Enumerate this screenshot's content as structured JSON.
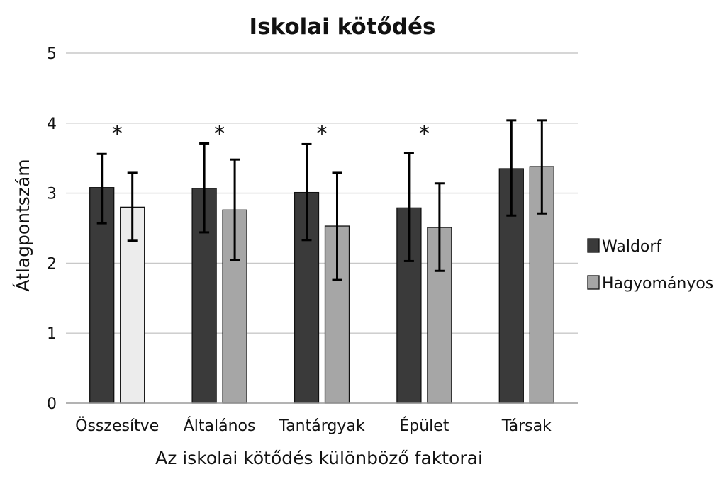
{
  "chart_data": {
    "type": "bar",
    "title": "Iskolai kötődés",
    "xlabel": "Az iskolai kötődés különböző faktorai",
    "ylabel": "Átlagpontszám",
    "ylim": [
      0,
      5
    ],
    "yticks": [
      "0",
      "1",
      "2",
      "3",
      "4",
      "5"
    ],
    "grid": true,
    "legend_position": "right",
    "categories": [
      "Összesítve",
      "Általános",
      "Tantárgyak",
      "Épület",
      "Társak"
    ],
    "series": [
      {
        "name": "Waldorf",
        "color": "#3a3a3a",
        "values": [
          3.08,
          3.07,
          3.01,
          2.79,
          3.35
        ],
        "error_low": [
          2.57,
          2.44,
          2.33,
          2.03,
          2.68
        ],
        "error_high": [
          3.56,
          3.71,
          3.7,
          3.57,
          4.04
        ]
      },
      {
        "name": "Hagyományos",
        "color": "#a6a6a6",
        "values": [
          2.8,
          2.76,
          2.53,
          2.51,
          3.38
        ],
        "error_low": [
          2.32,
          2.04,
          1.76,
          1.89,
          2.71
        ],
        "error_high": [
          3.29,
          3.48,
          3.29,
          3.14,
          4.04
        ]
      }
    ],
    "highlight": {
      "series": 1,
      "category": 0,
      "color": "#ececec"
    },
    "annotations": [
      {
        "text": "*",
        "category": 0,
        "y": 3.95
      },
      {
        "text": "*",
        "category": 1,
        "y": 3.95
      },
      {
        "text": "*",
        "category": 2,
        "y": 3.95
      },
      {
        "text": "*",
        "category": 3,
        "y": 3.95
      }
    ]
  }
}
